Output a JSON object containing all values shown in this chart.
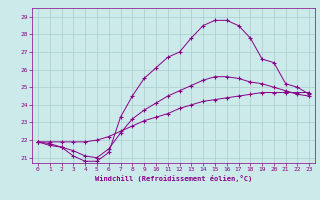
{
  "xlabel": "Windchill (Refroidissement éolien,°C)",
  "bg_color": "#cceaea",
  "grid_color": "#aacccc",
  "line_color": "#880088",
  "xlim": [
    -0.5,
    23.5
  ],
  "ylim": [
    20.7,
    29.5
  ],
  "yticks": [
    21,
    22,
    23,
    24,
    25,
    26,
    27,
    28,
    29
  ],
  "xticks": [
    0,
    1,
    2,
    3,
    4,
    5,
    6,
    7,
    8,
    9,
    10,
    11,
    12,
    13,
    14,
    15,
    16,
    17,
    18,
    19,
    20,
    21,
    22,
    23
  ],
  "line1_x": [
    0,
    1,
    2,
    3,
    4,
    5,
    6,
    7,
    8,
    9,
    10,
    11,
    12,
    13,
    14,
    15,
    16,
    17,
    18,
    19,
    20,
    21,
    22,
    23
  ],
  "line1_y": [
    21.9,
    21.7,
    21.6,
    21.1,
    20.8,
    20.8,
    21.3,
    23.3,
    24.5,
    25.5,
    26.1,
    26.7,
    27.0,
    27.8,
    28.5,
    28.8,
    28.8,
    28.5,
    27.8,
    26.6,
    26.4,
    25.2,
    25.0,
    24.6
  ],
  "line2_x": [
    0,
    1,
    2,
    3,
    4,
    5,
    6,
    7,
    8,
    9,
    10,
    11,
    12,
    13,
    14,
    15,
    16,
    17,
    18,
    19,
    20,
    21,
    22,
    23
  ],
  "line2_y": [
    21.9,
    21.8,
    21.6,
    21.4,
    21.1,
    21.0,
    21.5,
    22.4,
    23.2,
    23.7,
    24.1,
    24.5,
    24.8,
    25.1,
    25.4,
    25.6,
    25.6,
    25.5,
    25.3,
    25.2,
    25.0,
    24.8,
    24.6,
    24.5
  ],
  "line3_x": [
    0,
    1,
    2,
    3,
    4,
    5,
    6,
    7,
    8,
    9,
    10,
    11,
    12,
    13,
    14,
    15,
    16,
    17,
    18,
    19,
    20,
    21,
    22,
    23
  ],
  "line3_y": [
    21.9,
    21.9,
    21.9,
    21.9,
    21.9,
    22.0,
    22.2,
    22.5,
    22.8,
    23.1,
    23.3,
    23.5,
    23.8,
    24.0,
    24.2,
    24.3,
    24.4,
    24.5,
    24.6,
    24.7,
    24.7,
    24.7,
    24.7,
    24.7
  ]
}
